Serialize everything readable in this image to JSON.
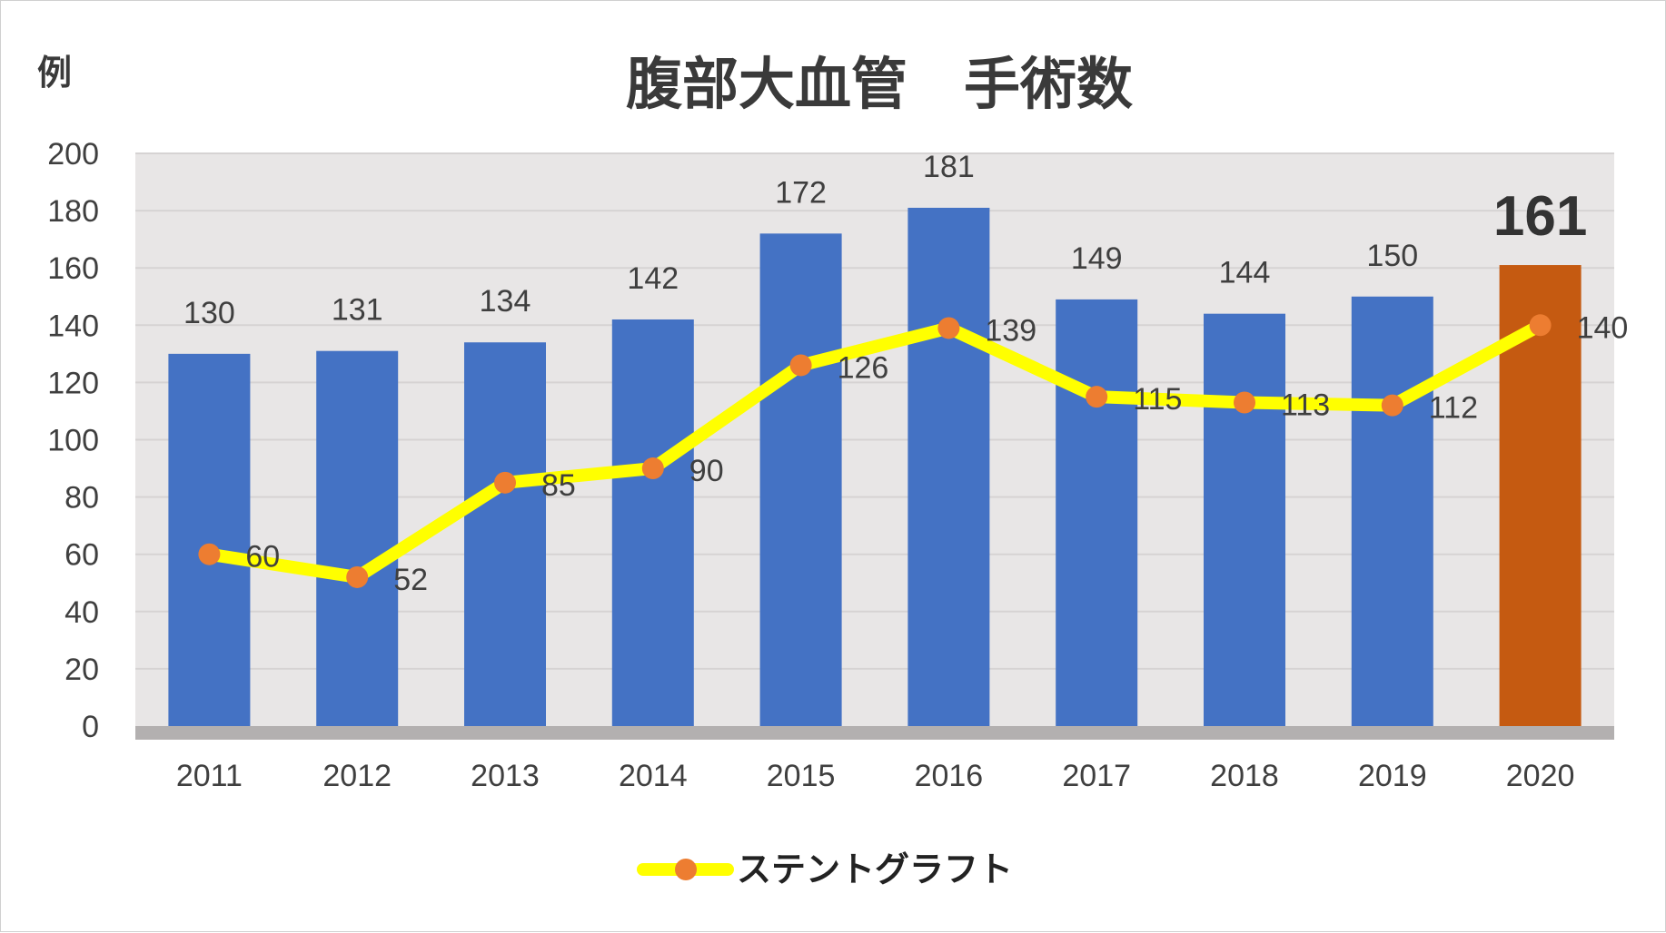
{
  "chart_data": {
    "type": "bar+line",
    "title": "腹部大血管　手術数",
    "ylabel": "例",
    "xlabel": "",
    "ylim": [
      0,
      200
    ],
    "yticks": [
      "0",
      "20",
      "40",
      "60",
      "80",
      "100",
      "120",
      "140",
      "160",
      "180",
      "200"
    ],
    "categories": [
      "2011",
      "2012",
      "2013",
      "2014",
      "2015",
      "2016",
      "2017",
      "2018",
      "2019",
      "2020"
    ],
    "bars": {
      "name": "",
      "values": [
        130,
        131,
        134,
        142,
        172,
        181,
        149,
        144,
        150,
        161
      ],
      "labels": [
        "130",
        "131",
        "134",
        "142",
        "172",
        "181",
        "149",
        "144",
        "150",
        "161"
      ],
      "color": "#4472c4",
      "highlight_color": "#c55a11",
      "highlight_index": 9
    },
    "line": {
      "name": "ステントグラフト",
      "values": [
        60,
        52,
        85,
        90,
        126,
        139,
        115,
        113,
        112,
        140
      ],
      "labels": [
        "60",
        "52",
        "85",
        "90",
        "126",
        "139",
        "115",
        "113",
        "112",
        "140"
      ],
      "line_color": "#ffff00",
      "marker_color": "#ed7d31"
    },
    "legend": {
      "position": "bottom",
      "entries": [
        "ステントグラフト"
      ]
    },
    "grid": true,
    "plot_background": "#e8e6e6",
    "axis_band_color": "#b3b0b0"
  }
}
